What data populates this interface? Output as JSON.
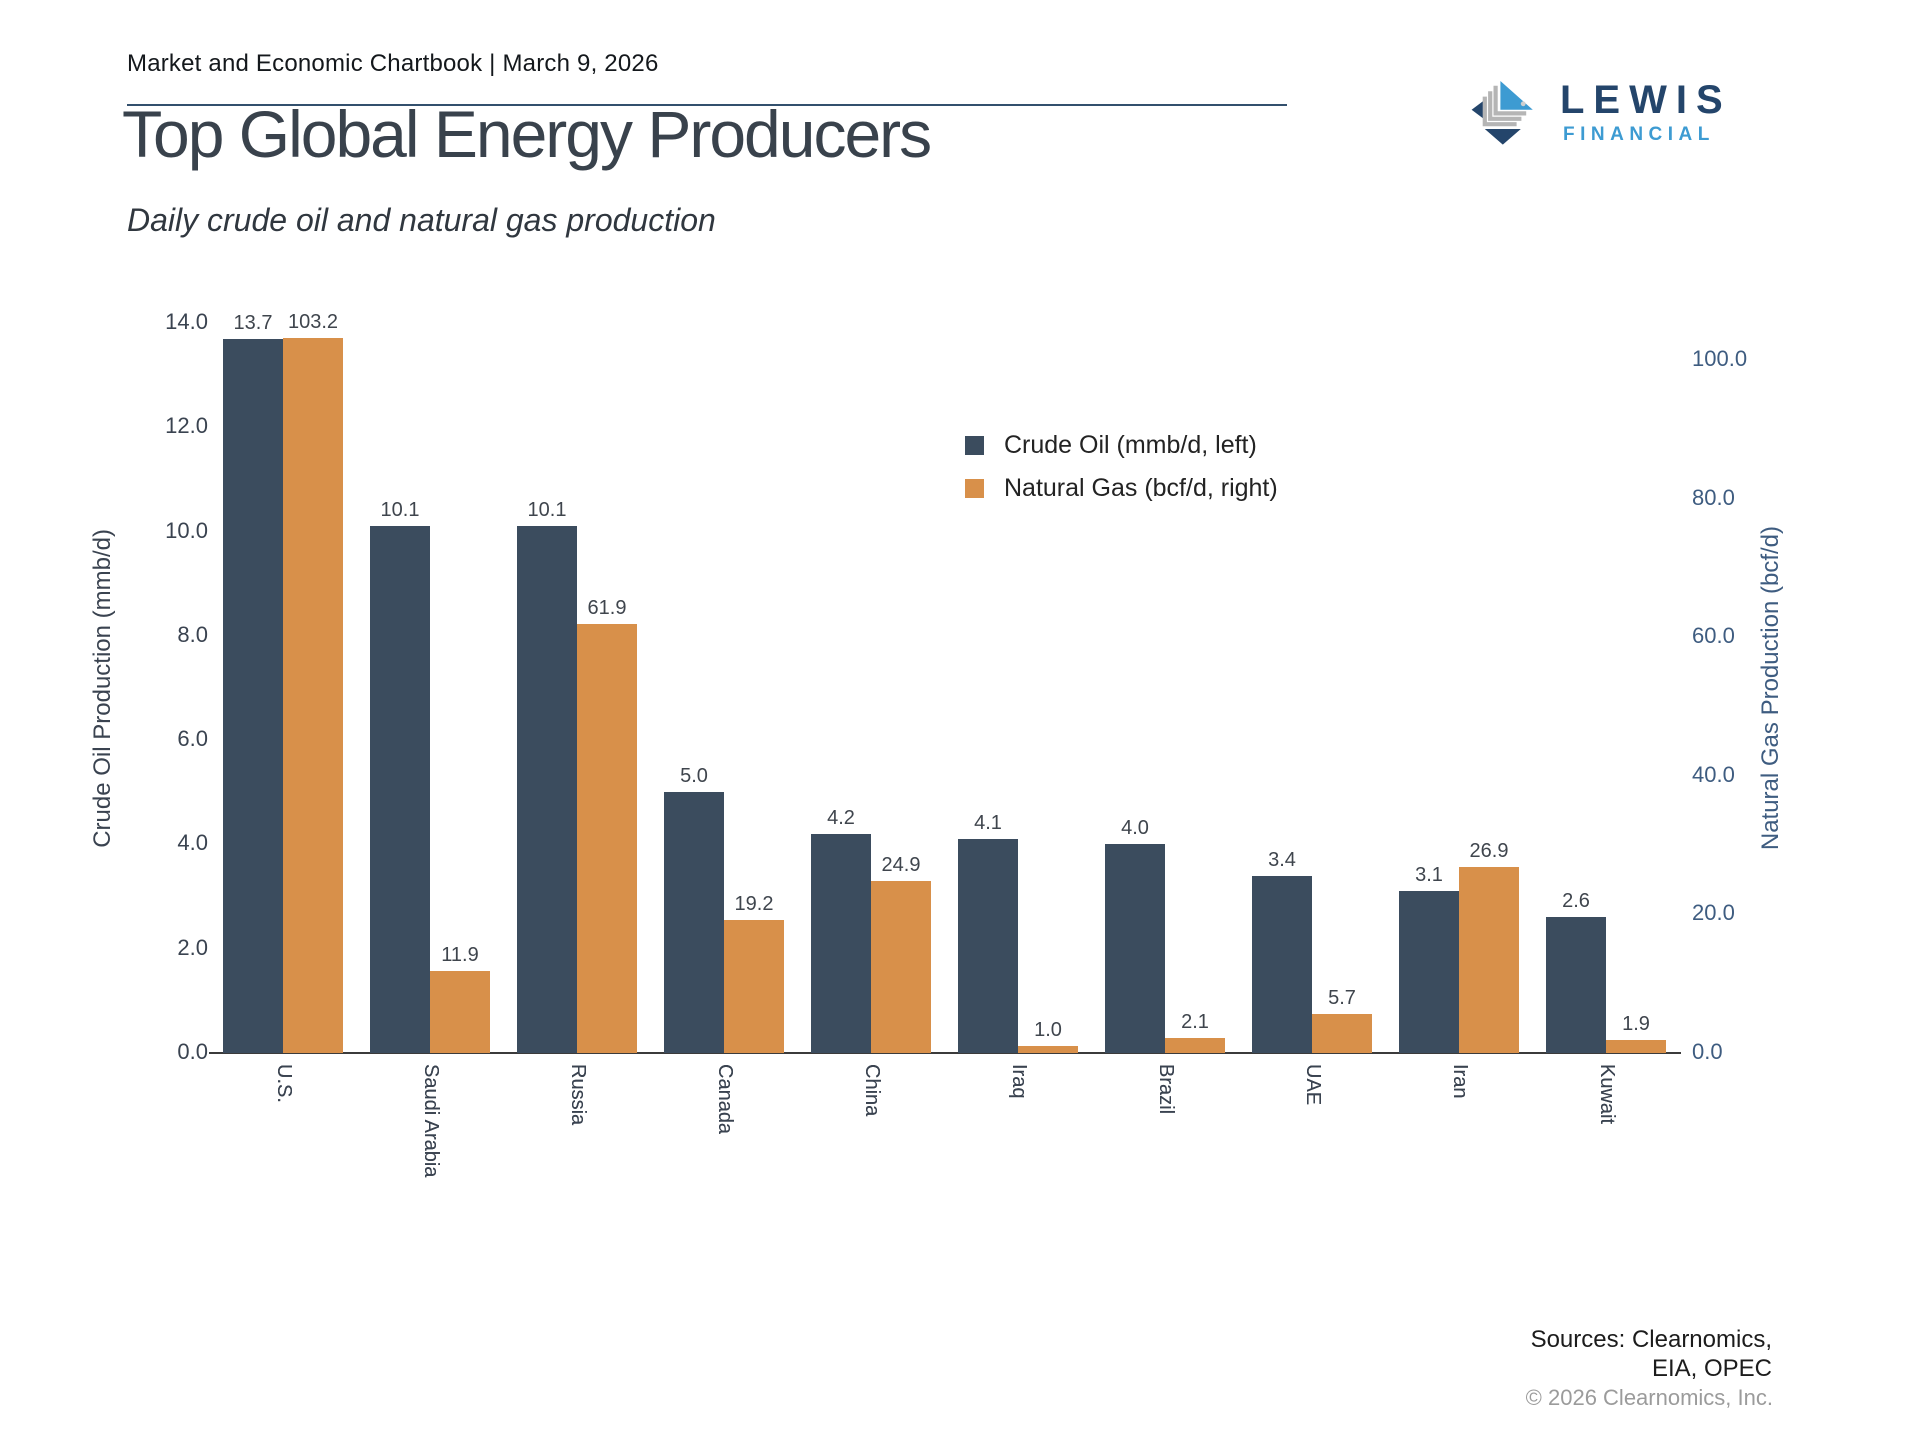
{
  "header": {
    "breadcrumb": "Market and Economic Chartbook | March 9, 2026",
    "logo": {
      "name": "LEWIS",
      "tagline": "FINANCIAL",
      "navy": "#24456b",
      "light_blue": "#3d9bd2",
      "gray": "#b5b5b5"
    }
  },
  "page": {
    "title": "Top Global Energy Producers",
    "subtitle": "Daily crude oil and natural gas production"
  },
  "chart_data": {
    "type": "bar",
    "title": "Top Global Energy Producers",
    "subtitle": "Daily crude oil and natural gas production",
    "categories": [
      "U.S.",
      "Saudi Arabia",
      "Russia",
      "Canada",
      "China",
      "Iraq",
      "Brazil",
      "UAE",
      "Iran",
      "Kuwait"
    ],
    "series": [
      {
        "name": "Crude Oil (mmb/d, left)",
        "axis": "left",
        "color": "#3b4c5e",
        "values": [
          13.7,
          10.1,
          10.1,
          5.0,
          4.2,
          4.1,
          4.0,
          3.4,
          3.1,
          2.6
        ]
      },
      {
        "name": "Natural Gas (bcf/d, right)",
        "axis": "right",
        "color": "#d8904a",
        "values": [
          103.2,
          11.9,
          61.9,
          19.2,
          24.9,
          1.0,
          2.1,
          5.7,
          26.9,
          1.9
        ]
      }
    ],
    "left_axis": {
      "label": "Crude Oil Production (mmb/d)",
      "ticks": [
        0,
        2,
        4,
        6,
        8,
        10,
        12,
        14
      ],
      "range": [
        0,
        14
      ]
    },
    "right_axis": {
      "label": "Natural Gas Production (bcf/d)",
      "ticks": [
        0,
        20,
        40,
        60,
        80,
        100
      ],
      "range": [
        0,
        105.4
      ]
    },
    "grid": false,
    "legend_position": "upper right",
    "bar_label_decimals": 1
  },
  "footer": {
    "sources_line1": "Sources: Clearnomics,",
    "sources_line2": "EIA, OPEC",
    "copyright": "© 2026 Clearnomics, Inc."
  }
}
